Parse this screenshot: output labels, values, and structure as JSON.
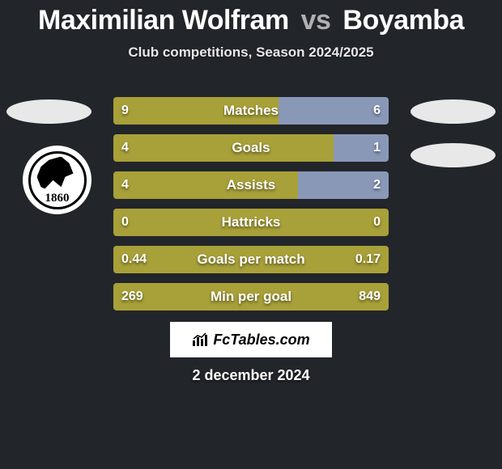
{
  "title": {
    "player1": "Maximilian Wolfram",
    "vs": "vs",
    "player2": "Boyamba"
  },
  "subtitle": "Club competitions, Season 2024/2025",
  "club_badge": {
    "year": "1860"
  },
  "bars": {
    "left_color": "#a8a038",
    "right_color": "#8a98b8",
    "track_color": "#8a98b8",
    "rows": [
      {
        "label": "Matches",
        "left_val": "9",
        "right_val": "6",
        "left_pct": 60,
        "right_pct": 40
      },
      {
        "label": "Goals",
        "left_val": "4",
        "right_val": "1",
        "left_pct": 80,
        "right_pct": 20
      },
      {
        "label": "Assists",
        "left_val": "4",
        "right_val": "2",
        "left_pct": 67,
        "right_pct": 33
      },
      {
        "label": "Hattricks",
        "left_val": "0",
        "right_val": "0",
        "left_pct": 100,
        "right_pct": 0
      },
      {
        "label": "Goals per match",
        "left_val": "0.44",
        "right_val": "0.17",
        "left_pct": 100,
        "right_pct": 0
      },
      {
        "label": "Min per goal",
        "left_val": "269",
        "right_val": "849",
        "left_pct": 100,
        "right_pct": 0
      }
    ]
  },
  "brand": "FcTables.com",
  "date": "2 december 2024",
  "colors": {
    "bg": "#22252a",
    "text": "#ffffff",
    "subtitle": "#e8e8e8",
    "vs": "#b0b0b0",
    "badge_bg": "#e8e8e8"
  }
}
